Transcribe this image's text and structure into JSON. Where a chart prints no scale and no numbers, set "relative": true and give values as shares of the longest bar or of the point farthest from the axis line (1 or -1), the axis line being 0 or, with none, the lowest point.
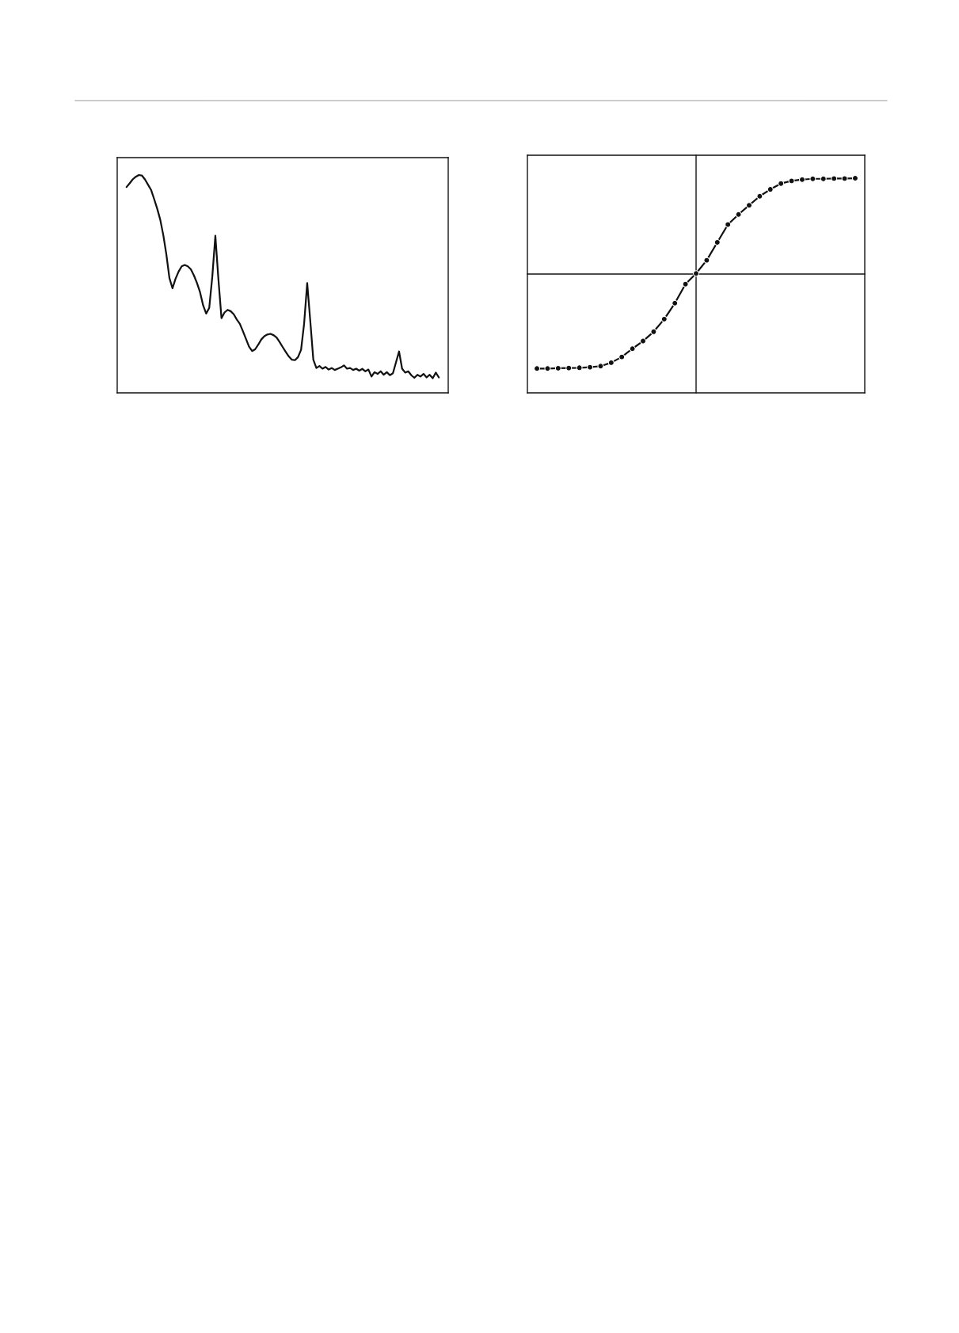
{
  "chart_data": [
    {
      "type": "line",
      "relative": true,
      "marker": "none",
      "line_style": "solid",
      "categories": [
        null,
        null,
        null,
        null,
        null,
        null,
        null,
        null,
        null,
        null,
        null,
        null,
        null,
        null,
        null,
        null,
        null,
        null,
        null,
        null,
        null,
        null,
        null,
        null,
        null,
        null,
        null,
        null,
        null,
        null,
        null,
        null,
        null,
        null,
        null,
        null,
        null,
        null,
        null,
        null,
        null,
        null,
        null,
        null,
        null,
        null,
        null,
        null,
        null,
        null,
        null,
        null,
        null,
        null,
        null,
        null,
        null,
        null,
        null,
        null,
        null,
        null,
        null,
        null,
        null,
        null,
        null,
        null,
        null,
        null,
        null,
        null,
        null,
        null,
        null,
        null,
        null,
        null,
        null,
        null,
        null,
        null,
        null,
        null,
        null,
        null,
        null,
        null,
        null,
        null,
        null,
        null,
        null,
        null,
        null,
        null,
        null,
        null,
        null,
        null,
        null,
        null,
        null
      ],
      "series": [
        {
          "color": "#111111",
          "values": [
            0.945,
            0.962,
            0.98,
            0.992,
            1.0,
            0.998,
            0.98,
            0.956,
            0.932,
            0.89,
            0.846,
            0.795,
            0.724,
            0.635,
            0.527,
            0.48,
            0.524,
            0.557,
            0.581,
            0.587,
            0.581,
            0.567,
            0.539,
            0.504,
            0.462,
            0.402,
            0.364,
            0.39,
            0.533,
            0.721,
            0.521,
            0.343,
            0.369,
            0.381,
            0.375,
            0.361,
            0.337,
            0.317,
            0.283,
            0.248,
            0.212,
            0.192,
            0.2,
            0.221,
            0.245,
            0.26,
            0.268,
            0.271,
            0.265,
            0.254,
            0.233,
            0.21,
            0.188,
            0.167,
            0.152,
            0.15,
            0.164,
            0.198,
            0.319,
            0.504,
            0.331,
            0.152,
            0.114,
            0.123,
            0.111,
            0.119,
            0.107,
            0.114,
            0.105,
            0.111,
            0.117,
            0.126,
            0.111,
            0.114,
            0.105,
            0.111,
            0.102,
            0.11,
            0.099,
            0.107,
            0.075,
            0.095,
            0.087,
            0.099,
            0.083,
            0.095,
            0.081,
            0.09,
            0.14,
            0.19,
            0.111,
            0.093,
            0.099,
            0.081,
            0.069,
            0.083,
            0.075,
            0.087,
            0.071,
            0.083,
            0.067,
            0.093,
            0.071
          ]
        }
      ]
    },
    {
      "type": "line",
      "relative": true,
      "marker": "circle",
      "line_style": "solid",
      "categories": [
        null,
        null,
        null,
        null,
        null,
        null,
        null,
        null,
        null,
        null,
        null,
        null,
        null,
        null,
        null,
        null,
        null,
        null,
        null,
        null,
        null,
        null,
        null,
        null,
        null,
        null,
        null,
        null,
        null,
        null,
        null
      ],
      "series": [
        {
          "color": "#111111",
          "values": [
            -0.986,
            -0.986,
            -0.983,
            -0.981,
            -0.978,
            -0.972,
            -0.961,
            -0.925,
            -0.865,
            -0.779,
            -0.699,
            -0.602,
            -0.47,
            -0.304,
            -0.105,
            0.006,
            0.144,
            0.331,
            0.517,
            0.622,
            0.718,
            0.812,
            0.884,
            0.945,
            0.972,
            0.986,
            0.994,
            0.994,
            0.997,
            0.997,
            1.0
          ]
        }
      ]
    }
  ]
}
